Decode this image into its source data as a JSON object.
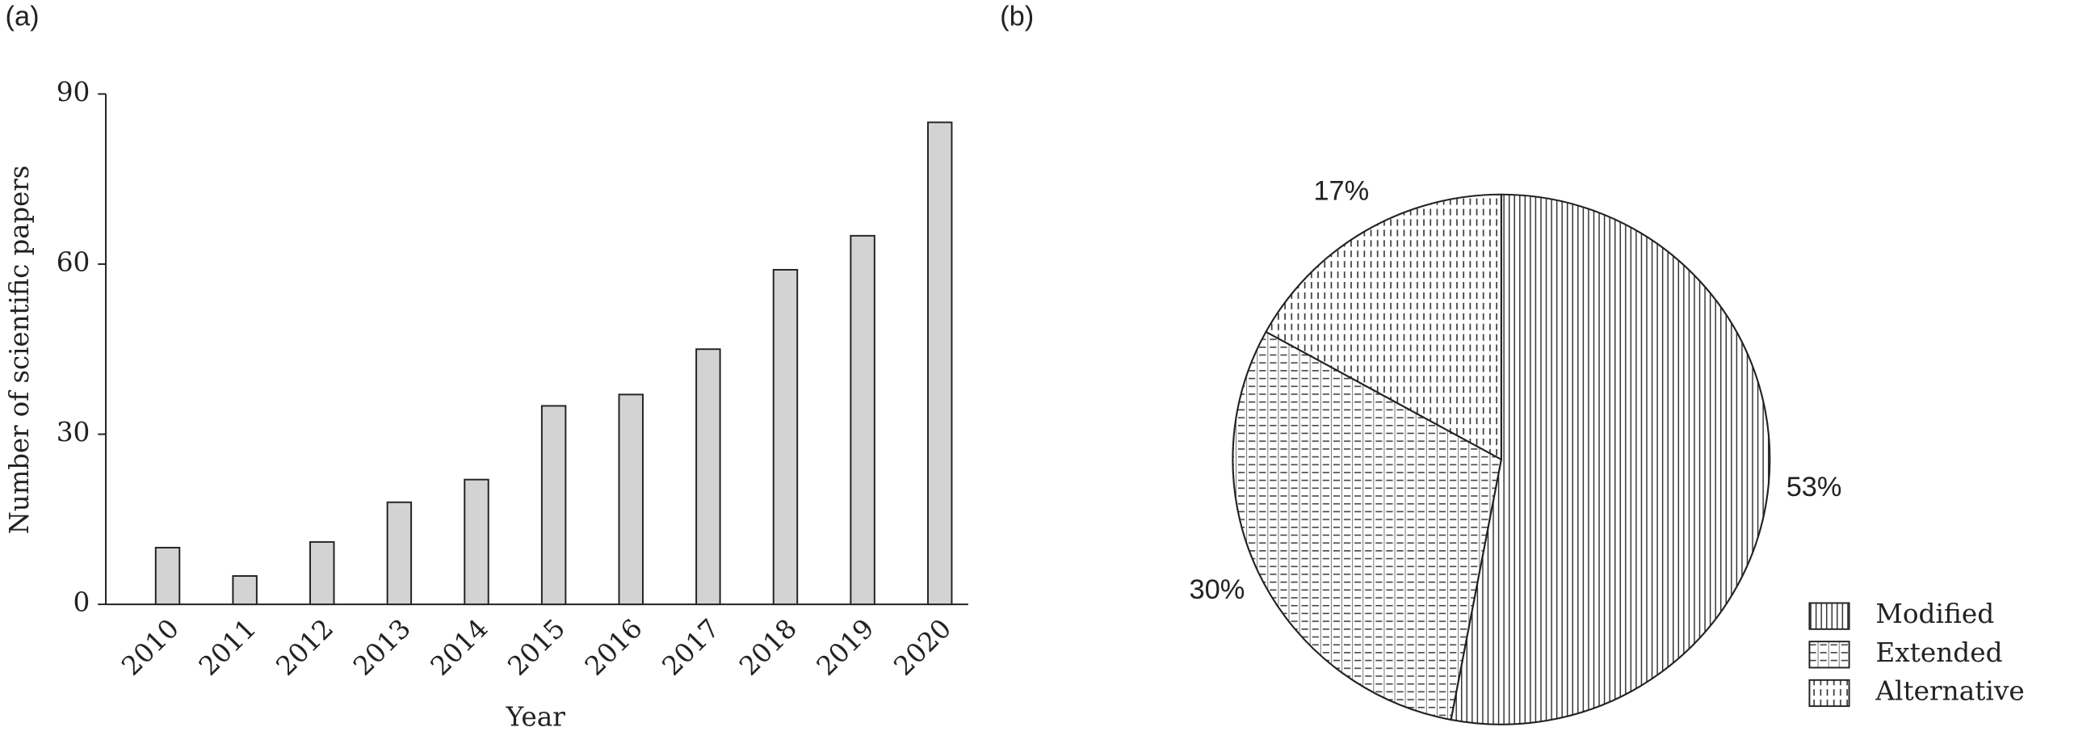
{
  "chart_data": [
    {
      "type": "bar",
      "panel_label": "(a)",
      "x_label": "Year",
      "y_label": "Number of scientific papers",
      "categories": [
        "2010",
        "2011",
        "2012",
        "2013",
        "2014",
        "2015",
        "2016",
        "2017",
        "2018",
        "2019",
        "2020"
      ],
      "values": [
        10,
        5,
        11,
        18,
        22,
        35,
        37,
        45,
        59,
        65,
        85
      ],
      "color": "#d3d3d3",
      "ylim": [
        0,
        90
      ],
      "yticks": [
        0,
        30,
        60,
        90
      ]
    },
    {
      "type": "pie",
      "panel_label": "(b)",
      "categories": [
        "Modified",
        "Extended",
        "Alternative"
      ],
      "values": [
        53,
        30,
        17
      ],
      "value_labels": [
        "53%",
        "30%",
        "17%"
      ],
      "patterns": [
        "vertical-lines",
        "dashed-grid",
        "vertical-dashes"
      ],
      "legend": "lower right"
    }
  ]
}
